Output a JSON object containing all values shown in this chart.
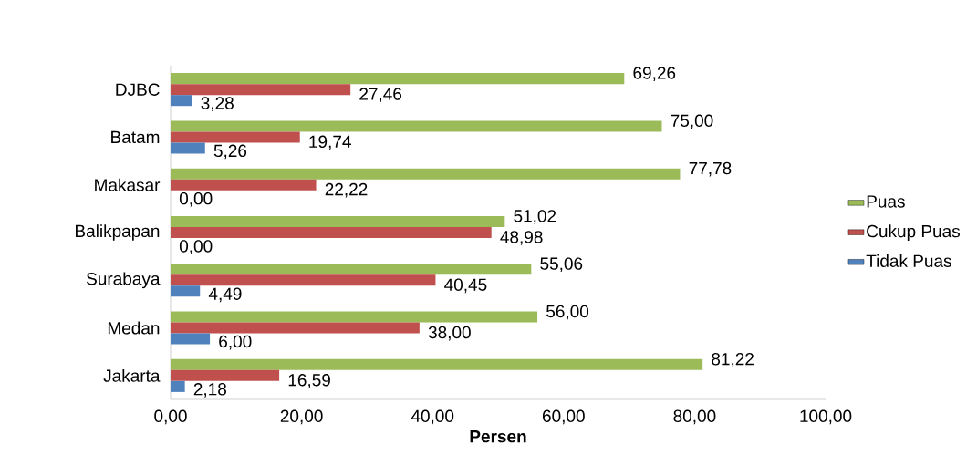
{
  "chart_data": {
    "type": "bar",
    "orientation": "horizontal",
    "xlabel": "Persen",
    "categories": [
      "DJBC",
      "Batam",
      "Makasar",
      "Balikpapan",
      "Surabaya",
      "Medan",
      "Jakarta"
    ],
    "series": [
      {
        "name": "Puas",
        "color": "#9bbb59",
        "values": [
          69.26,
          75.0,
          77.78,
          51.02,
          55.06,
          56.0,
          81.22
        ],
        "value_labels": [
          "69,26",
          "75,00",
          "77,78",
          "51,02",
          "55,06",
          "56,00",
          "81,22"
        ]
      },
      {
        "name": "Cukup Puas",
        "color": "#c0504d",
        "values": [
          27.46,
          19.74,
          22.22,
          48.98,
          40.45,
          38.0,
          16.59
        ],
        "value_labels": [
          "27,46",
          "19,74",
          "22,22",
          "48,98",
          "40,45",
          "38,00",
          "16,59"
        ]
      },
      {
        "name": "Tidak Puas",
        "color": "#4f81bd",
        "values": [
          3.28,
          5.26,
          0.0,
          0.0,
          4.49,
          6.0,
          2.18
        ],
        "value_labels": [
          "3,28",
          "5,26",
          "0,00",
          "0,00",
          "4,49",
          "6,00",
          "2,18"
        ]
      }
    ],
    "xlim": [
      0,
      100
    ],
    "xticks": [
      {
        "value": 0,
        "label": "0,00"
      },
      {
        "value": 20,
        "label": "20,00"
      },
      {
        "value": 40,
        "label": "40,00"
      },
      {
        "value": 60,
        "label": "60,00"
      },
      {
        "value": 80,
        "label": "80,00"
      },
      {
        "value": 100,
        "label": "100,00"
      }
    ],
    "legend": "right",
    "grid": false
  }
}
